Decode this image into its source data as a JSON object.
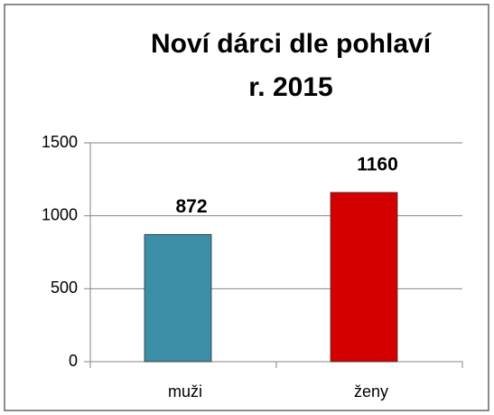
{
  "chart_data": {
    "type": "bar",
    "title": [
      "Noví dárci dle pohlaví",
      "r. 2015"
    ],
    "categories": [
      "muži",
      "ženy"
    ],
    "values": [
      872,
      1160
    ],
    "colors": [
      "#3b8ea5",
      "#d40000"
    ],
    "ylim": [
      0,
      1500
    ],
    "yticks": [
      0,
      500,
      1000,
      1500
    ],
    "grid": true
  }
}
